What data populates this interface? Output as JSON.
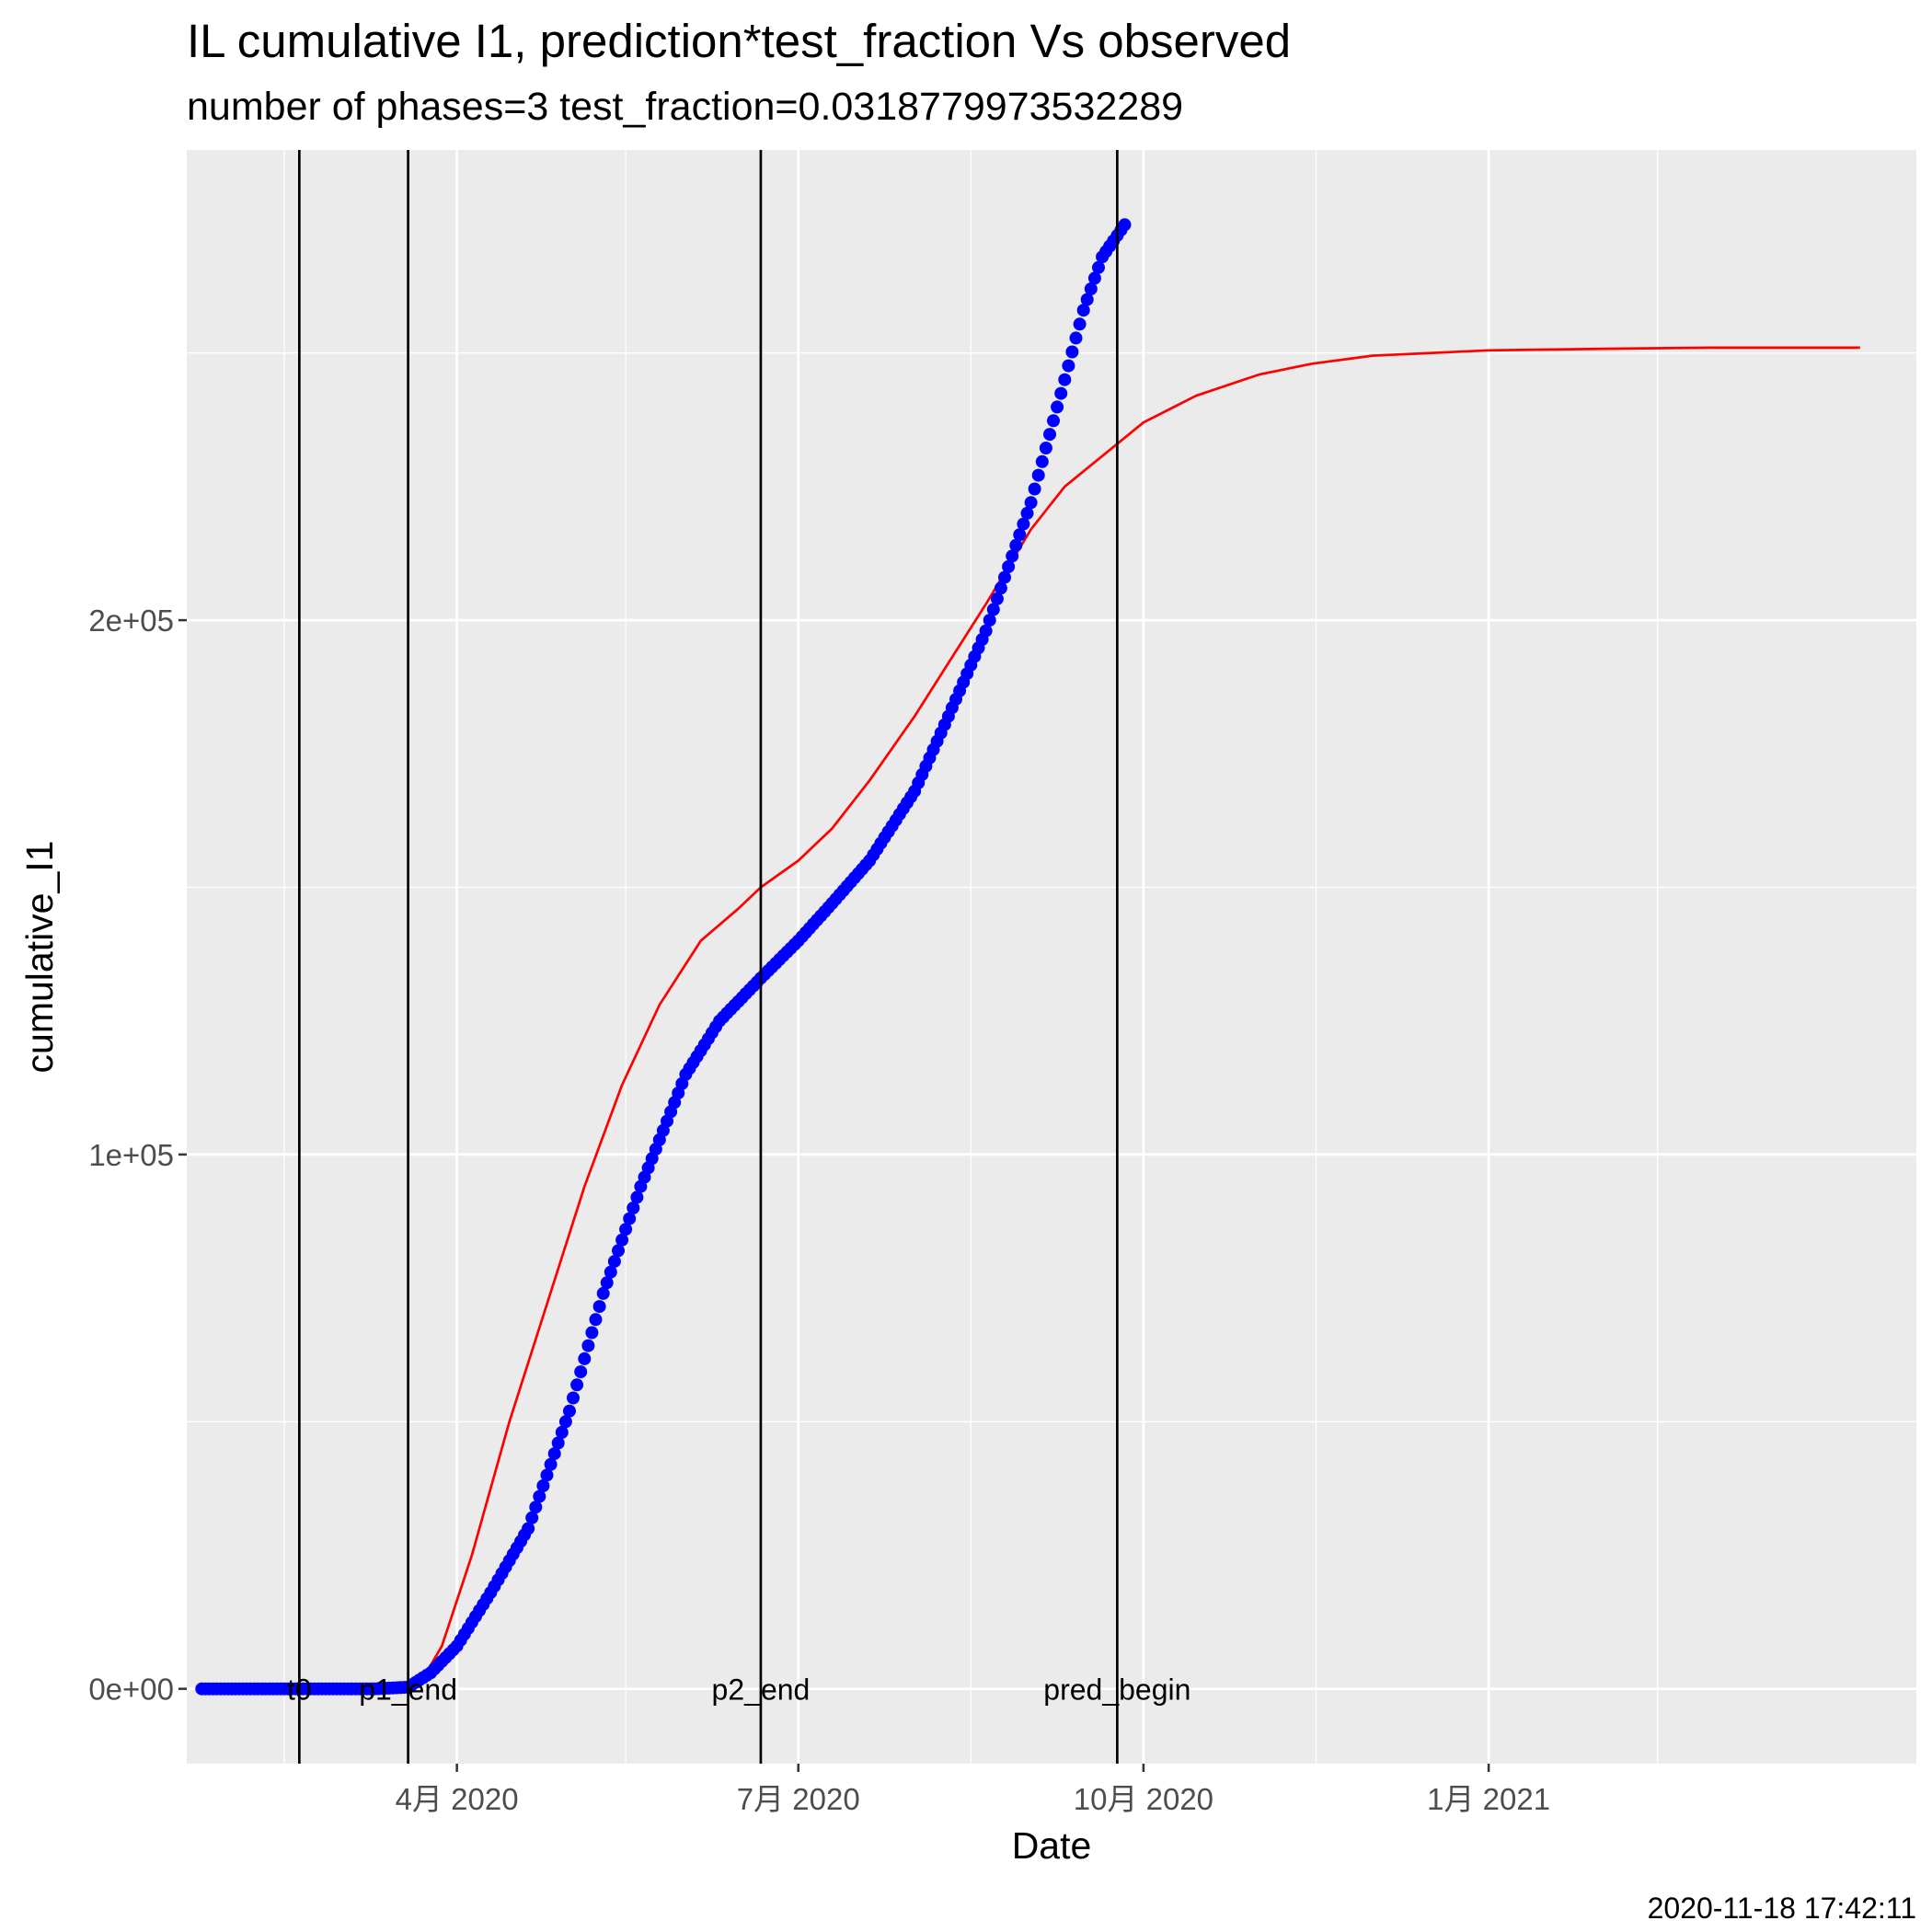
{
  "chart_data": {
    "type": "scatter",
    "title": "IL cumulative I1,  prediction*test_fraction Vs observed",
    "subtitle": "number of phases=3      test_fraction=0.0318779973532289",
    "xlabel": "Date",
    "ylabel": "cumulative_I1",
    "caption": "2020-11-18 17:42:11",
    "x_axis": {
      "type": "date",
      "range": [
        "2020-01-20",
        "2021-04-25"
      ],
      "ticks": [
        {
          "date": "2020-04-01",
          "label": "4月 2020"
        },
        {
          "date": "2020-07-01",
          "label": "7月 2020"
        },
        {
          "date": "2020-10-01",
          "label": "10月 2020"
        },
        {
          "date": "2021-01-01",
          "label": "1月 2021"
        }
      ],
      "minor_ticks": [
        "2020-02-15",
        "2020-05-16",
        "2020-08-16",
        "2020-11-16",
        "2021-02-15"
      ]
    },
    "y_axis": {
      "range": [
        -14000,
        288000
      ],
      "ticks": [
        {
          "value": 0,
          "label": "0e+00"
        },
        {
          "value": 100000,
          "label": "1e+05"
        },
        {
          "value": 200000,
          "label": "2e+05"
        }
      ],
      "minor_ticks": [
        50000,
        150000,
        250000
      ]
    },
    "grid": true,
    "vlines": [
      {
        "label": "t0",
        "date": "2020-02-19"
      },
      {
        "label": "p1_end",
        "date": "2020-03-19"
      },
      {
        "label": "p2_end",
        "date": "2020-06-21"
      },
      {
        "label": "pred_begin",
        "date": "2020-09-24"
      }
    ],
    "series": [
      {
        "kind": "points",
        "color": "#0000ff",
        "start": "2020-01-24",
        "end": "2020-09-26",
        "anchors": [
          [
            "2020-01-24",
            0
          ],
          [
            "2020-03-10",
            0
          ],
          [
            "2020-03-19",
            300
          ],
          [
            "2020-03-25",
            3000
          ],
          [
            "2020-04-01",
            8000
          ],
          [
            "2020-04-10",
            18000
          ],
          [
            "2020-04-20",
            30000
          ],
          [
            "2020-05-01",
            52000
          ],
          [
            "2020-05-10",
            74000
          ],
          [
            "2020-05-20",
            94000
          ],
          [
            "2020-06-01",
            115000
          ],
          [
            "2020-06-10",
            125000
          ],
          [
            "2020-06-21",
            133000
          ],
          [
            "2020-07-01",
            140000
          ],
          [
            "2020-07-10",
            147000
          ],
          [
            "2020-07-20",
            155000
          ],
          [
            "2020-08-01",
            168000
          ],
          [
            "2020-08-10",
            182000
          ],
          [
            "2020-08-20",
            198000
          ],
          [
            "2020-09-01",
            222000
          ],
          [
            "2020-09-10",
            245000
          ],
          [
            "2020-09-15",
            258000
          ],
          [
            "2020-09-20",
            268000
          ],
          [
            "2020-09-26",
            274000
          ]
        ]
      },
      {
        "kind": "line",
        "color": "#ff0000",
        "points": [
          [
            "2020-03-19",
            0
          ],
          [
            "2020-03-23",
            2000
          ],
          [
            "2020-03-28",
            8000
          ],
          [
            "2020-04-05",
            25000
          ],
          [
            "2020-04-15",
            50000
          ],
          [
            "2020-04-25",
            72000
          ],
          [
            "2020-05-05",
            94000
          ],
          [
            "2020-05-15",
            113000
          ],
          [
            "2020-05-25",
            128000
          ],
          [
            "2020-06-05",
            140000
          ],
          [
            "2020-06-15",
            146000
          ],
          [
            "2020-06-21",
            150000
          ],
          [
            "2020-07-01",
            155000
          ],
          [
            "2020-07-10",
            161000
          ],
          [
            "2020-07-20",
            170000
          ],
          [
            "2020-08-01",
            182000
          ],
          [
            "2020-08-10",
            192000
          ],
          [
            "2020-08-20",
            203000
          ],
          [
            "2020-09-01",
            217000
          ],
          [
            "2020-09-10",
            225000
          ],
          [
            "2020-09-24",
            233000
          ],
          [
            "2020-10-01",
            237000
          ],
          [
            "2020-10-15",
            242000
          ],
          [
            "2020-11-01",
            246000
          ],
          [
            "2020-11-15",
            248000
          ],
          [
            "2020-12-01",
            249500
          ],
          [
            "2021-01-01",
            250500
          ],
          [
            "2021-02-01",
            250800
          ],
          [
            "2021-03-01",
            251000
          ],
          [
            "2021-04-10",
            251000
          ]
        ]
      }
    ]
  }
}
